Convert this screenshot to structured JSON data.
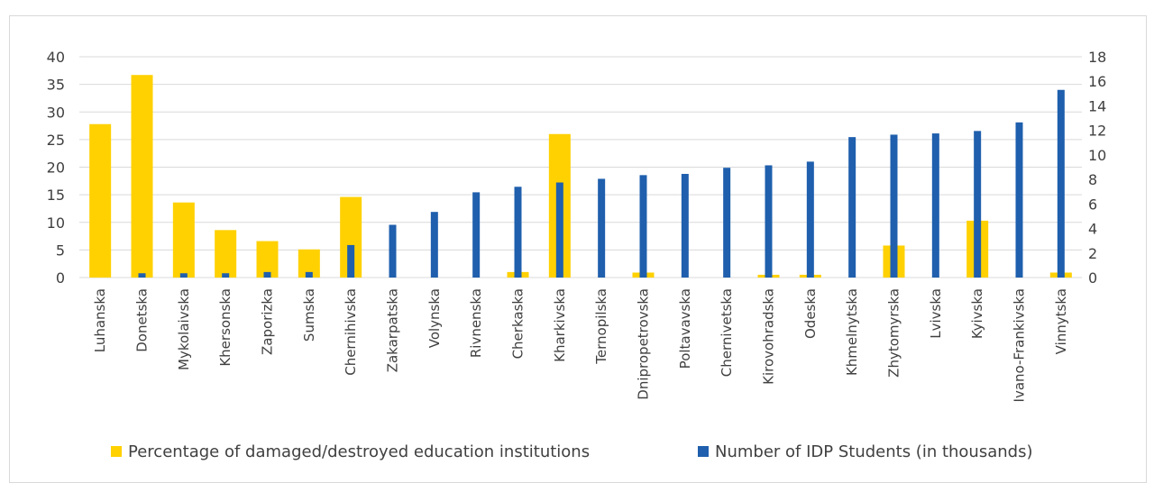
{
  "chart_data": {
    "type": "bar",
    "categories": [
      "Luhanska",
      "Donetska",
      "Mykolaivska",
      "Khersonska",
      "Zaporizka",
      "Sumska",
      "Chernihivska",
      "Zakarpatska",
      "Volynska",
      "Rivnenska",
      "Cherkaska",
      "Kharkivska",
      "Ternopilska",
      "Dnipropetrovska",
      "Poltavavska",
      "Chernivetska",
      "Kirovohradska",
      "Odeska",
      "Khmelnytska",
      "Zhytomyrska",
      "Lvivska",
      "Kyivska",
      "Ivano-Frankivska",
      "Vinnytska"
    ],
    "series": [
      {
        "name": "Percentage of damaged/destroyed education institutions",
        "axis": "left",
        "color": "#FFD100",
        "values": [
          27.8,
          36.7,
          13.6,
          8.6,
          6.6,
          5.1,
          14.6,
          0,
          0,
          0,
          1.0,
          26.0,
          0,
          0.9,
          0,
          0,
          0.5,
          0.5,
          0,
          5.8,
          0,
          10.3,
          0,
          0.9
        ]
      },
      {
        "name": "Number of IDP Students (in thousands)",
        "axis": "right",
        "color": "#1F5FAD",
        "values": [
          0,
          0.35,
          0.35,
          0.35,
          0.45,
          0.45,
          2.65,
          4.3,
          5.35,
          6.95,
          7.4,
          7.75,
          8.05,
          8.35,
          8.45,
          8.95,
          9.15,
          9.45,
          11.45,
          11.65,
          11.75,
          11.95,
          12.65,
          15.3
        ]
      }
    ],
    "y_left": {
      "ticks": [
        0,
        5,
        10,
        15,
        20,
        25,
        30,
        35,
        40
      ],
      "ylim": [
        0,
        40
      ]
    },
    "y_right": {
      "ticks": [
        0,
        2,
        4,
        6,
        8,
        10,
        12,
        14,
        16,
        18
      ],
      "ylim": [
        0,
        18
      ]
    },
    "grid": true,
    "legend_position": "bottom"
  }
}
